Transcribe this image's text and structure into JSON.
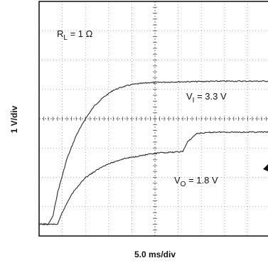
{
  "chart_data": {
    "type": "line",
    "xlabel": "5.0 ms/div",
    "ylabel": "1 V/div",
    "xlim": [
      0,
      50
    ],
    "ylim": [
      -1.8,
      5.2
    ],
    "grid": true,
    "annotations": {
      "rl": {
        "main": "R",
        "sub": "L",
        "rest": " = 1 Ω"
      },
      "vi": {
        "main": "V",
        "sub": "I",
        "rest": " = 3.3 V"
      },
      "vo": {
        "main": "V",
        "sub": "O",
        "rest": " = 1.8 V"
      }
    },
    "series": [
      {
        "x": [
          0,
          2,
          3,
          4,
          6,
          8,
          10,
          12,
          14,
          16,
          18,
          20,
          24,
          30,
          40,
          50
        ],
        "y": [
          -1.45,
          -1.45,
          -1.2,
          -0.5,
          0.5,
          1.2,
          1.7,
          2.1,
          2.35,
          2.55,
          2.65,
          2.72,
          2.78,
          2.8,
          2.82,
          2.82
        ]
      },
      {
        "x": [
          0,
          2,
          4,
          5,
          7,
          10,
          14,
          18,
          22,
          26,
          29,
          31,
          32,
          34,
          38,
          44,
          50
        ],
        "y": [
          -1.45,
          -1.45,
          -1.45,
          -1.1,
          -0.55,
          -0.05,
          0.3,
          0.5,
          0.6,
          0.68,
          0.7,
          0.72,
          1.0,
          1.26,
          1.3,
          1.3,
          1.3
        ]
      }
    ]
  }
}
